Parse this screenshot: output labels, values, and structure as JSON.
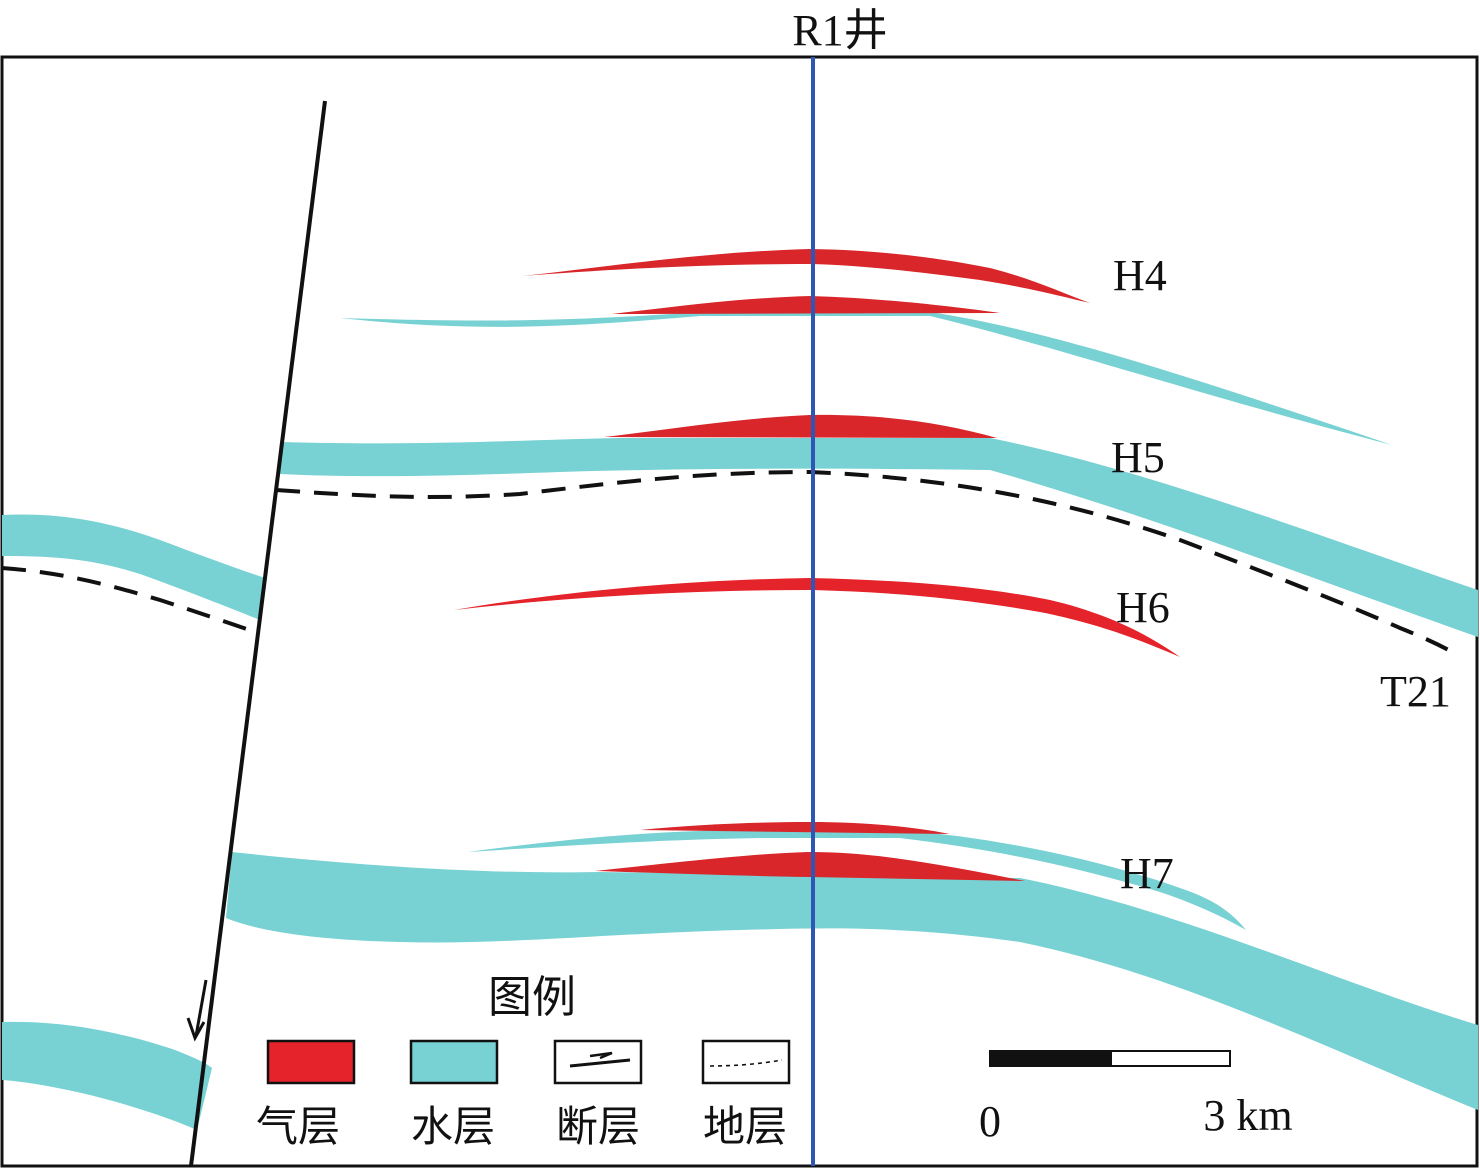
{
  "well": {
    "label": "R1井"
  },
  "horizons": {
    "h4": "H4",
    "h5": "H5",
    "h6": "H6",
    "h7": "H7",
    "t21": "T21"
  },
  "legend": {
    "title": "图例",
    "items": [
      {
        "label": "气层",
        "type": "gas-layer"
      },
      {
        "label": "水层",
        "type": "water-layer"
      },
      {
        "label": "断层",
        "type": "fault"
      },
      {
        "label": "地层",
        "type": "stratum"
      }
    ]
  },
  "scale_bar": {
    "start_label": "0",
    "end_label": "3 km"
  },
  "colors": {
    "gas": "#e5232a",
    "gas_dark": "#d8262a",
    "water": "#78d1d3",
    "well_line": "#2f55b5",
    "fault": "#111111",
    "stratum": "#111111"
  }
}
